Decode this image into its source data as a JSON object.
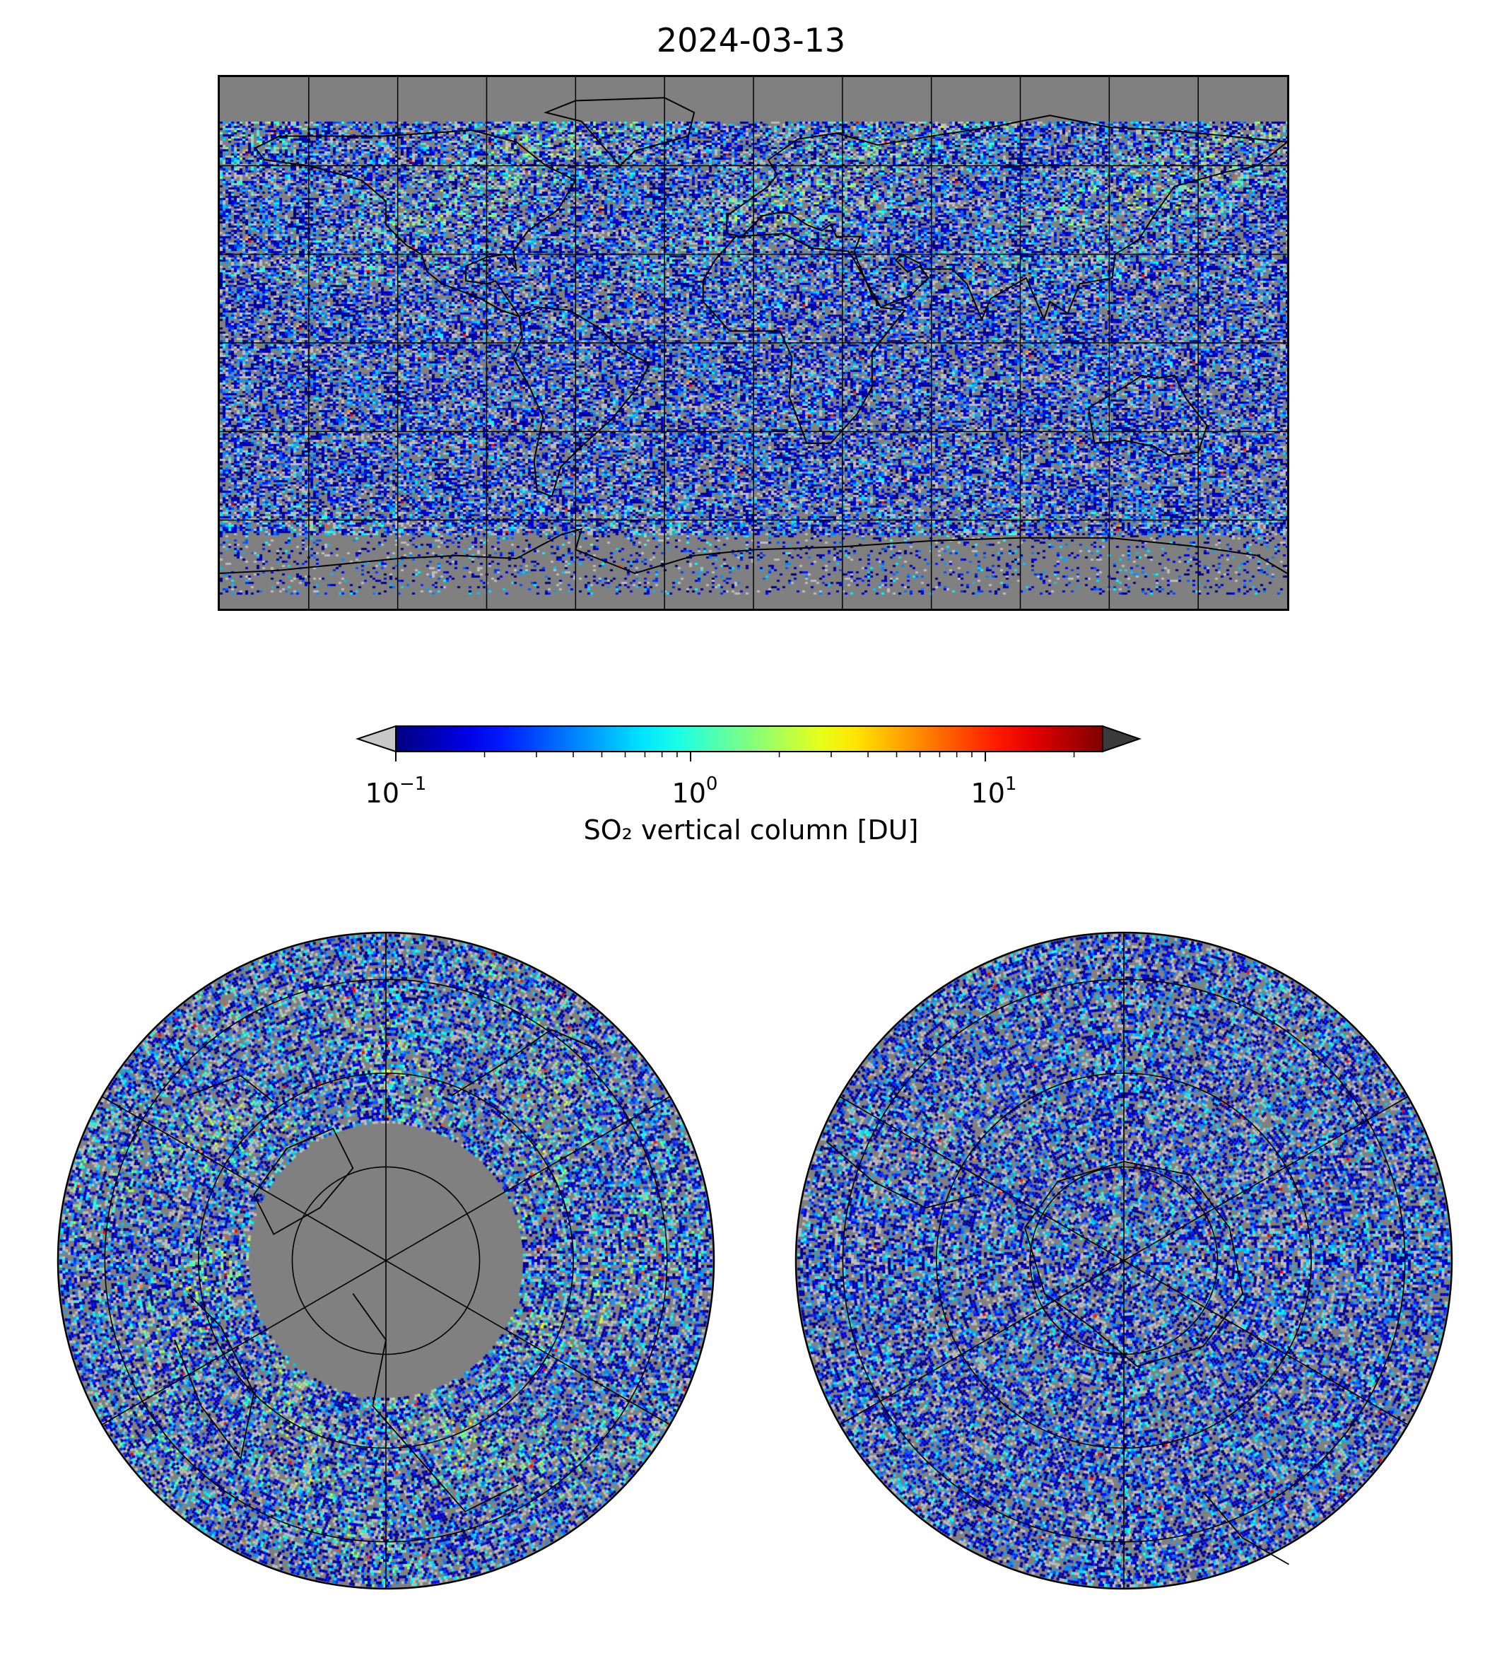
{
  "title": "2024-03-13",
  "colorbar": {
    "label": "SO₂ vertical column [DU]",
    "scale": "log",
    "range": [
      0.1,
      25
    ],
    "extend": "both",
    "colormap": "jet",
    "under_color": "#c8c8c8",
    "over_color": "#3a3a3a",
    "ticks": [
      {
        "base": "10",
        "exp": "−1"
      },
      {
        "base": "10",
        "exp": "0"
      },
      {
        "base": "10",
        "exp": "1"
      }
    ]
  },
  "maps": [
    {
      "name": "global-map",
      "projection": "plate-carree",
      "background": "#808080"
    },
    {
      "name": "north-polar-map",
      "projection": "north-polar-stereographic",
      "background": "#808080"
    },
    {
      "name": "south-polar-map",
      "projection": "south-polar-stereographic",
      "background": "#808080"
    }
  ]
}
